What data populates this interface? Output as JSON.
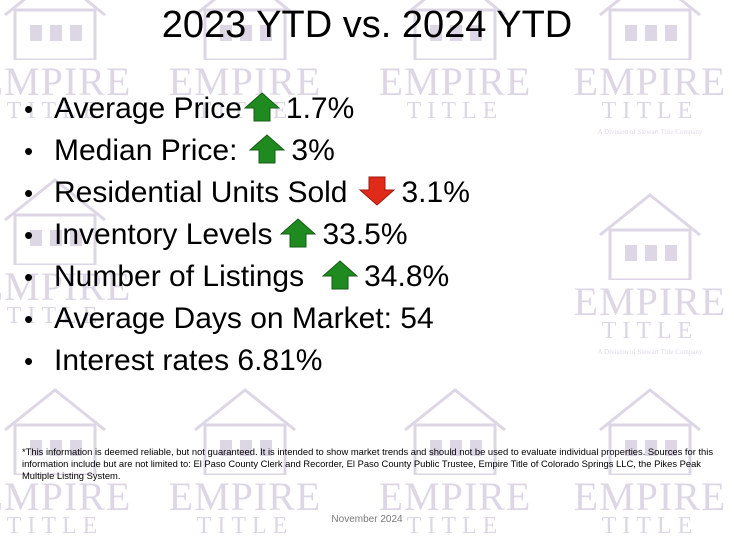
{
  "slide": {
    "title": "2023 YTD vs. 2024 YTD",
    "bullets": [
      {
        "label": "Average Price",
        "arrow": "up",
        "value": "1.7%"
      },
      {
        "label": "Median Price:",
        "arrow": "up",
        "value": "3%"
      },
      {
        "label": "Residential Units Sold",
        "arrow": "down",
        "value": "3.1%"
      },
      {
        "label": "Inventory Levels",
        "arrow": "up",
        "value": "33.5%"
      },
      {
        "label": "Number of Listings",
        "arrow": "up",
        "value": "34.8%"
      },
      {
        "label": "Average Days on Market: 54",
        "arrow": "none",
        "value": ""
      },
      {
        "label": "Interest rates 6.81%",
        "arrow": "none",
        "value": ""
      }
    ],
    "disclaimer": "*This information is deemed reliable, but not guaranteed.  It is intended to show market trends and should not be used to evaluate individual properties.  Sources for this information include but are not limited to: El Paso County Clerk and Recorder, El Paso County Public Trustee, Empire Title of Colorado Springs LLC, the Pikes Peak Multiple Listing System.",
    "footer_date": "November 2024"
  },
  "watermark": {
    "brand": "EMPIRE",
    "sub": "TITLE",
    "tagline": "A Division of Stewart Title Company"
  },
  "colors": {
    "up_arrow": "#1f8a1f",
    "down_arrow": "#e02a1a",
    "watermark": "#6a4a8c"
  },
  "icons": {
    "up": "green-up-arrow-icon",
    "down": "red-down-arrow-icon",
    "bullet": "bullet-dot"
  }
}
